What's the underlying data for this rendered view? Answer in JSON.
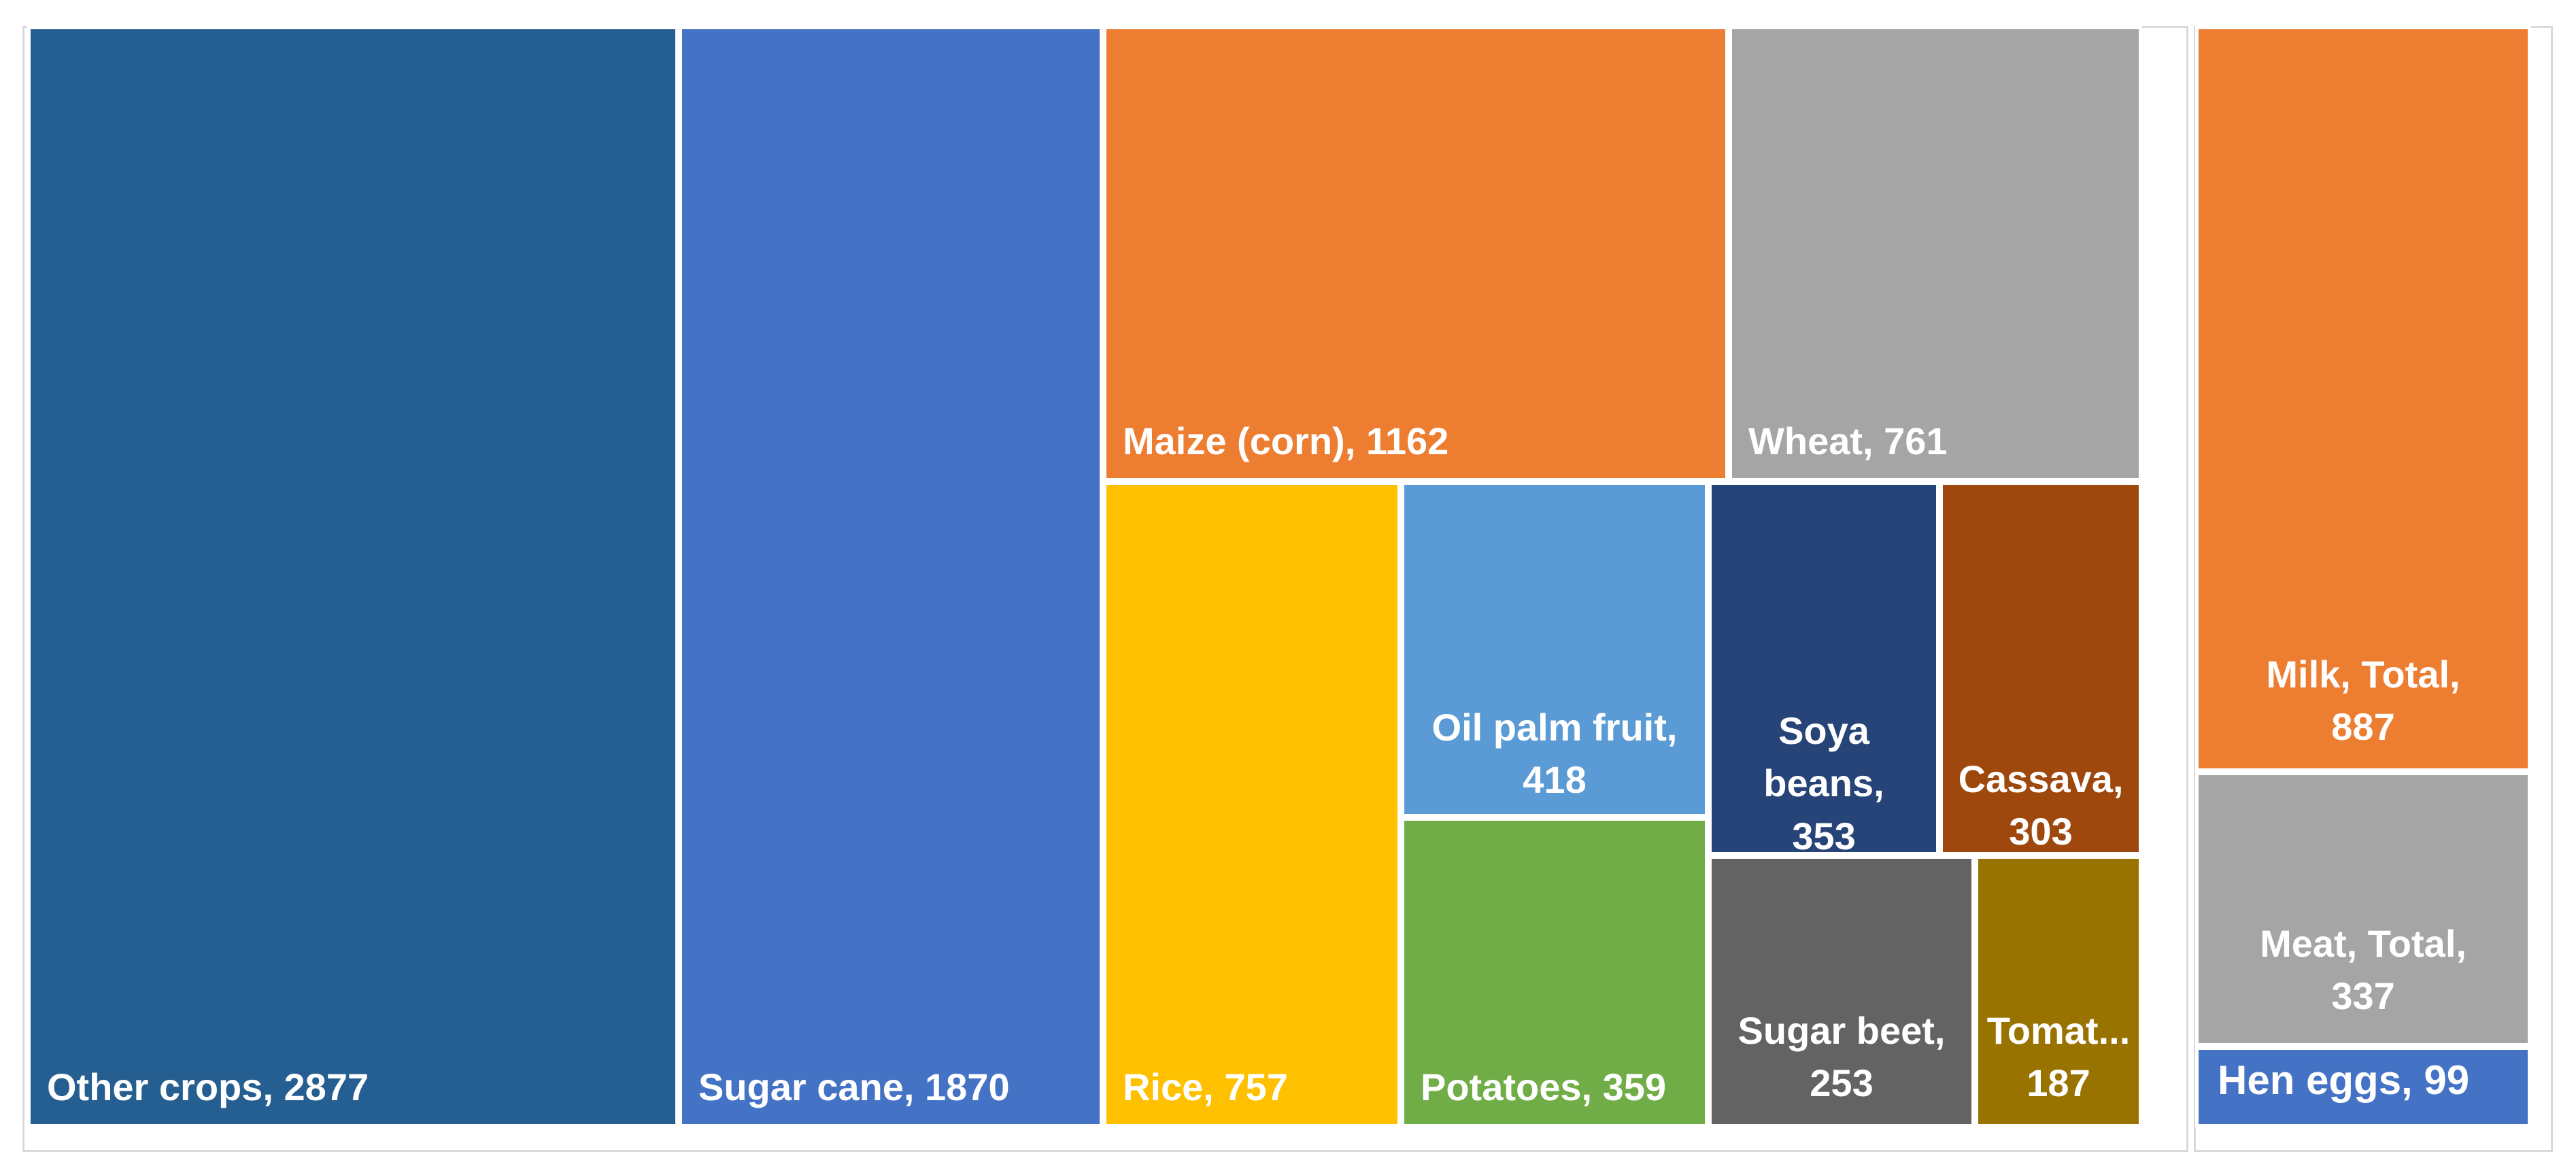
{
  "chart_data": {
    "type": "treemap",
    "groups": [
      {
        "items": [
          {
            "name": "Other crops",
            "value": 2877,
            "color": "#255E91",
            "label_lines": [
              "Other crops, 2877"
            ]
          },
          {
            "name": "Sugar cane",
            "value": 1870,
            "color": "#4472C4",
            "label_lines": [
              "Sugar cane, 1870"
            ]
          },
          {
            "name": "Maize (corn)",
            "value": 1162,
            "color": "#ED7D31",
            "label_lines": [
              "Maize (corn), 1162"
            ]
          },
          {
            "name": "Wheat",
            "value": 761,
            "color": "#A5A5A5",
            "label_lines": [
              "Wheat, 761"
            ]
          },
          {
            "name": "Rice",
            "value": 757,
            "color": "#FFC000",
            "label_lines": [
              "Rice, 757"
            ]
          },
          {
            "name": "Oil palm fruit",
            "value": 418,
            "color": "#5B9BD5",
            "label_lines": [
              "Oil palm fruit,",
              "418"
            ]
          },
          {
            "name": "Potatoes",
            "value": 359,
            "color": "#70AD47",
            "label_lines": [
              "Potatoes, 359"
            ]
          },
          {
            "name": "Soya beans",
            "value": 353,
            "color": "#264478",
            "label_lines": [
              "Soya",
              "beans,",
              "353"
            ]
          },
          {
            "name": "Cassava",
            "value": 303,
            "color": "#9E480E",
            "label_lines": [
              "Cassava,",
              "303"
            ]
          },
          {
            "name": "Sugar beet",
            "value": 253,
            "color": "#636363",
            "label_lines": [
              "Sugar beet,",
              "253"
            ]
          },
          {
            "name": "Tomatoes",
            "value": 187,
            "color": "#997300",
            "label_lines": [
              "Tomat...",
              "187"
            ]
          }
        ]
      },
      {
        "items": [
          {
            "name": "Milk, Total",
            "value": 887,
            "color": "#ED7D31",
            "label_lines": [
              "Milk, Total,",
              "887"
            ]
          },
          {
            "name": "Meat, Total",
            "value": 337,
            "color": "#A5A5A5",
            "label_lines": [
              "Meat, Total,",
              "337"
            ]
          },
          {
            "name": "Hen eggs",
            "value": 99,
            "color": "#4472C4",
            "label_lines": [
              "Hen eggs, 99"
            ]
          }
        ]
      }
    ]
  }
}
